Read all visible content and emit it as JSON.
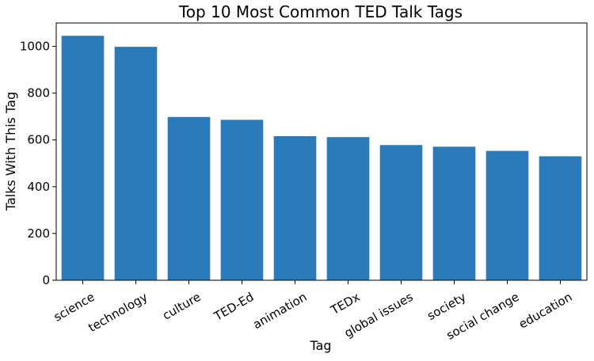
{
  "chart_data": {
    "type": "bar",
    "title": "Top 10 Most Common TED Talk Tags",
    "xlabel": "Tag",
    "ylabel": "Talks With This Tag",
    "categories": [
      "science",
      "technology",
      "culture",
      "TED-Ed",
      "animation",
      "TEDx",
      "global issues",
      "society",
      "social change",
      "education"
    ],
    "values": [
      1045,
      998,
      698,
      686,
      616,
      612,
      578,
      571,
      553,
      530
    ],
    "ylim": [
      0,
      1100
    ],
    "yticks": [
      0,
      200,
      400,
      600,
      800,
      1000
    ],
    "grid": false,
    "bar_color": "#2a7ab9",
    "legend": null
  }
}
